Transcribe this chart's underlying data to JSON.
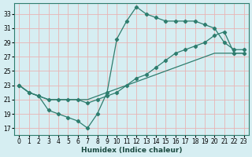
{
  "xlabel": "Humidex (Indice chaleur)",
  "background_color": "#d6eef2",
  "grid_color": "#f0c8c8",
  "line_color": "#2e7d6e",
  "xlim": [
    -0.5,
    23.5
  ],
  "ylim": [
    16,
    34.5
  ],
  "xticks": [
    0,
    1,
    2,
    3,
    4,
    5,
    6,
    7,
    8,
    9,
    10,
    11,
    12,
    13,
    14,
    15,
    16,
    17,
    18,
    19,
    20,
    21,
    22,
    23
  ],
  "yticks": [
    17,
    19,
    21,
    23,
    25,
    27,
    29,
    31,
    33
  ],
  "line1_x": [
    0,
    1,
    2,
    3,
    4,
    5,
    6,
    7,
    8,
    9,
    10,
    11,
    12,
    13,
    14,
    15,
    16,
    17,
    18,
    19,
    20,
    21,
    22,
    23
  ],
  "line1_y": [
    23,
    22,
    21.5,
    19.5,
    19,
    18.5,
    18,
    17,
    19,
    22,
    29.5,
    32,
    34,
    33,
    32.5,
    32,
    32,
    32,
    32,
    31.5,
    31,
    29,
    28,
    28
  ],
  "line2_x": [
    0,
    1,
    2,
    3,
    4,
    5,
    6,
    7,
    8,
    9,
    10,
    11,
    12,
    13,
    14,
    15,
    16,
    17,
    18,
    19,
    20,
    21,
    22,
    23
  ],
  "line2_y": [
    23,
    22,
    21.5,
    21,
    21,
    21,
    21,
    20.5,
    21,
    21.5,
    22,
    23,
    24,
    24.5,
    25.5,
    26.5,
    27.5,
    28,
    28.5,
    29,
    30,
    30.5,
    27.5,
    27.5
  ],
  "line3_x": [
    0,
    1,
    2,
    3,
    4,
    5,
    6,
    7,
    8,
    9,
    10,
    11,
    12,
    13,
    14,
    15,
    16,
    17,
    18,
    19,
    20,
    21,
    22,
    23
  ],
  "line3_y": [
    23,
    22,
    21.5,
    21,
    21,
    21,
    21,
    21,
    21.5,
    22,
    22.5,
    23,
    23.5,
    24,
    24.5,
    25,
    25.5,
    26,
    26.5,
    27,
    27.5,
    27.5,
    27.5,
    27.5
  ]
}
